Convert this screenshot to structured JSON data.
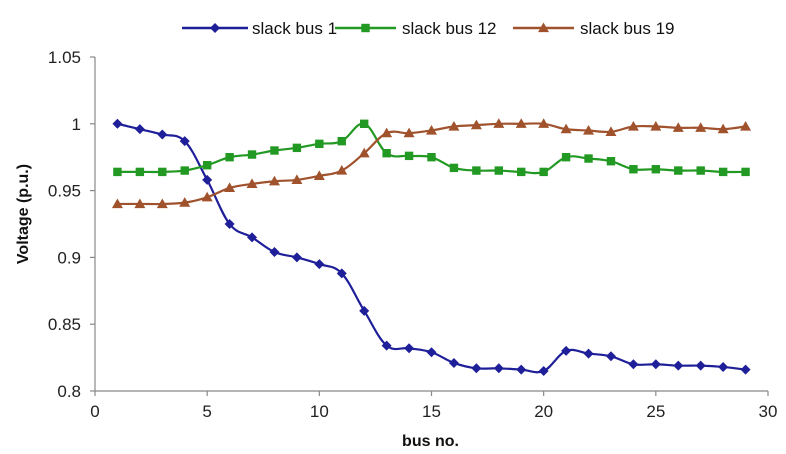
{
  "chart_data": {
    "type": "line",
    "xlabel": "bus no.",
    "ylabel": "Voltage (p.u.)",
    "xlim": [
      0,
      30
    ],
    "ylim": [
      0.8,
      1.05
    ],
    "xticks": [
      "0",
      "5",
      "10",
      "15",
      "20",
      "25",
      "30"
    ],
    "yticks": [
      "0.8",
      "0.85",
      "0.9",
      "0.95",
      "1",
      "1.05"
    ],
    "grid": false,
    "legend_position": "top",
    "x": [
      1,
      2,
      3,
      4,
      5,
      6,
      7,
      8,
      9,
      10,
      11,
      12,
      13,
      14,
      15,
      16,
      17,
      18,
      19,
      20,
      21,
      22,
      23,
      24,
      25,
      26,
      27,
      28,
      29
    ],
    "series": [
      {
        "name": "slack bus 1",
        "color": "#1f1f99",
        "marker": "diamond",
        "values": [
          1.0,
          0.996,
          0.992,
          0.987,
          0.958,
          0.925,
          0.915,
          0.904,
          0.9,
          0.895,
          0.888,
          0.86,
          0.834,
          0.832,
          0.829,
          0.821,
          0.817,
          0.817,
          0.816,
          0.815,
          0.83,
          0.828,
          0.826,
          0.82,
          0.82,
          0.819,
          0.819,
          0.818,
          0.816
        ]
      },
      {
        "name": "slack bus 12",
        "color": "#229922",
        "marker": "square",
        "values": [
          0.964,
          0.964,
          0.964,
          0.965,
          0.969,
          0.975,
          0.977,
          0.98,
          0.982,
          0.985,
          0.987,
          1.0,
          0.978,
          0.976,
          0.975,
          0.967,
          0.965,
          0.965,
          0.964,
          0.964,
          0.975,
          0.974,
          0.972,
          0.966,
          0.966,
          0.965,
          0.965,
          0.964,
          0.964
        ]
      },
      {
        "name": "slack bus 19",
        "color": "#a0522d",
        "marker": "triangle",
        "values": [
          0.94,
          0.94,
          0.94,
          0.941,
          0.945,
          0.952,
          0.955,
          0.957,
          0.958,
          0.961,
          0.965,
          0.978,
          0.993,
          0.993,
          0.995,
          0.998,
          0.999,
          1.0,
          1.0,
          1.0,
          0.996,
          0.995,
          0.994,
          0.998,
          0.998,
          0.997,
          0.997,
          0.996,
          0.998
        ]
      }
    ]
  }
}
